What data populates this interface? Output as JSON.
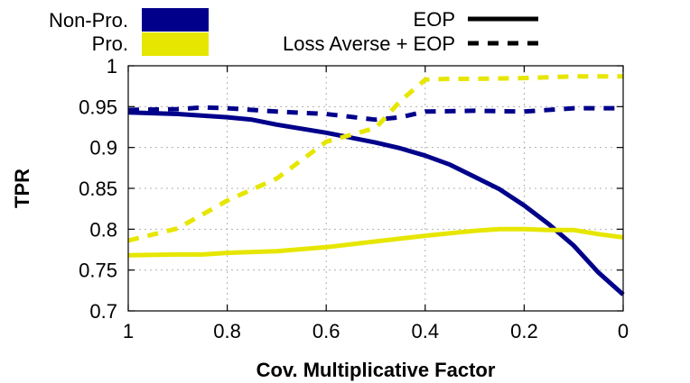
{
  "chart_data": {
    "type": "line",
    "title": "",
    "xlabel": "Cov. Multiplicative Factor",
    "ylabel": "TPR",
    "xlim": [
      1,
      0
    ],
    "ylim": [
      0.7,
      1
    ],
    "x_reversed": true,
    "grid": true,
    "xticks": [
      1,
      0.8,
      0.6,
      0.4,
      0.2,
      0
    ],
    "xtick_labels": [
      "1",
      "0.8",
      "0.6",
      "0.4",
      "0.2",
      "0"
    ],
    "yticks": [
      0.7,
      0.75,
      0.8,
      0.85,
      0.9,
      0.95,
      1
    ],
    "ytick_labels": [
      "0.7",
      "0.75",
      "0.8",
      "0.85",
      "0.9",
      "0.95",
      "1"
    ],
    "legend": {
      "placement": "top",
      "color_entries": [
        {
          "label": "Non-Pro.",
          "color": "#00008b"
        },
        {
          "label": "Pro.",
          "color": "#e6e600"
        }
      ],
      "style_entries": [
        {
          "label": "EOP",
          "style": "solid"
        },
        {
          "label": "Loss Averse + EOP",
          "style": "dashed"
        }
      ]
    },
    "series": [
      {
        "group": "Non-Pro.",
        "method": "EOP",
        "color": "#00008b",
        "style": "solid",
        "x": [
          1,
          0.9,
          0.8,
          0.75,
          0.7,
          0.6,
          0.5,
          0.45,
          0.4,
          0.35,
          0.3,
          0.25,
          0.2,
          0.15,
          0.1,
          0.05,
          0
        ],
        "y": [
          0.943,
          0.941,
          0.937,
          0.934,
          0.928,
          0.918,
          0.906,
          0.899,
          0.89,
          0.879,
          0.864,
          0.849,
          0.829,
          0.806,
          0.78,
          0.747,
          0.72
        ]
      },
      {
        "group": "Non-Pro.",
        "method": "Loss Averse + EOP",
        "color": "#00008b",
        "style": "dashed",
        "x": [
          1,
          0.9,
          0.85,
          0.8,
          0.7,
          0.6,
          0.5,
          0.45,
          0.4,
          0.3,
          0.2,
          0.1,
          0.05,
          0
        ],
        "y": [
          0.946,
          0.947,
          0.949,
          0.948,
          0.944,
          0.941,
          0.934,
          0.937,
          0.944,
          0.945,
          0.944,
          0.948,
          0.948,
          0.948
        ]
      },
      {
        "group": "Pro.",
        "method": "EOP",
        "color": "#e6e600",
        "style": "solid",
        "x": [
          1,
          0.9,
          0.85,
          0.8,
          0.7,
          0.6,
          0.5,
          0.4,
          0.3,
          0.25,
          0.2,
          0.15,
          0.1,
          0.05,
          0
        ],
        "y": [
          0.768,
          0.769,
          0.769,
          0.771,
          0.773,
          0.778,
          0.785,
          0.792,
          0.798,
          0.8,
          0.8,
          0.799,
          0.799,
          0.794,
          0.79
        ]
      },
      {
        "group": "Pro.",
        "method": "Loss Averse + EOP",
        "color": "#e6e600",
        "style": "dashed",
        "x": [
          1,
          0.9,
          0.8,
          0.7,
          0.6,
          0.5,
          0.45,
          0.4,
          0.35,
          0.3,
          0.2,
          0.1,
          0
        ],
        "y": [
          0.786,
          0.801,
          0.835,
          0.862,
          0.907,
          0.924,
          0.957,
          0.983,
          0.984,
          0.984,
          0.985,
          0.987,
          0.987
        ]
      }
    ]
  }
}
